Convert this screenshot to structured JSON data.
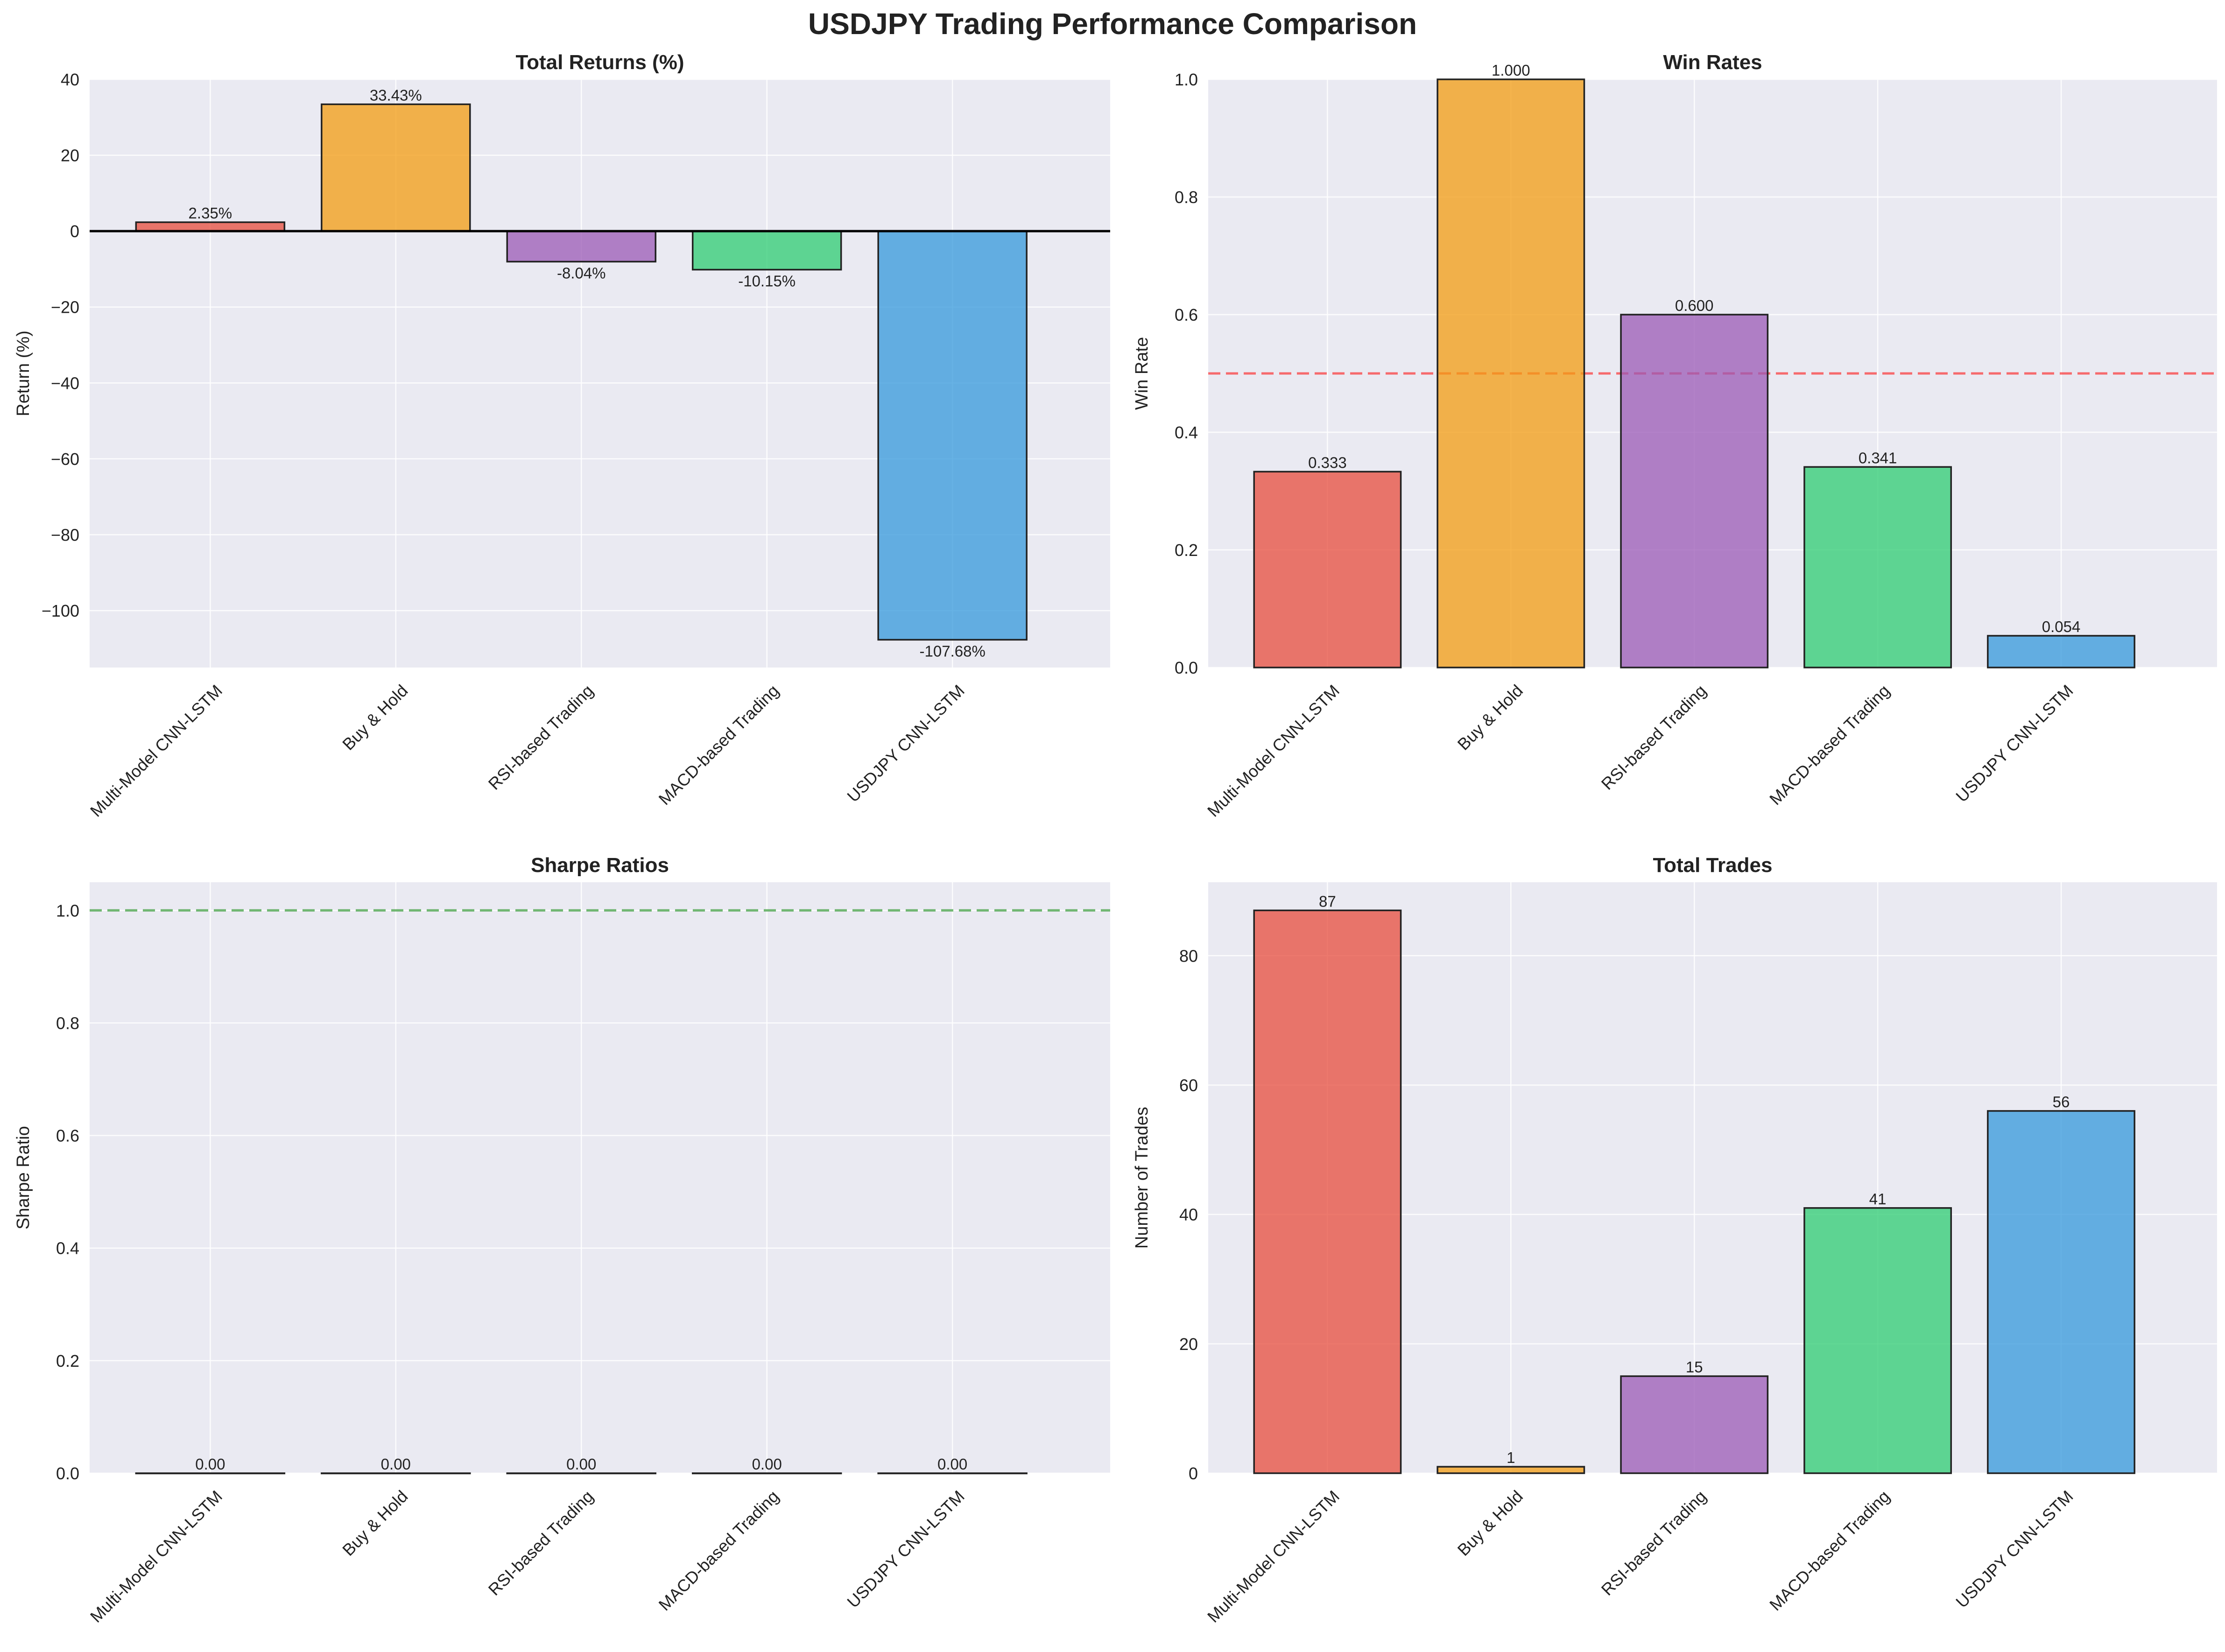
{
  "figure": {
    "title": "USDJPY Trading Performance Comparison",
    "bar_colors": [
      "#e74c3c",
      "#f39c12",
      "#9b59b6",
      "#2ecc71",
      "#3498db"
    ],
    "bar_alpha": 0.75,
    "background": "#eaeaf2"
  },
  "chart_data": [
    {
      "type": "bar",
      "title": "Total Returns (%)",
      "xlabel": "",
      "ylabel": "Return (%)",
      "categories": [
        "Multi-Model CNN-LSTM",
        "Buy & Hold",
        "RSI-based Trading",
        "MACD-based Trading",
        "USDJPY CNN-LSTM"
      ],
      "values": [
        2.35,
        33.43,
        -8.04,
        -10.15,
        -107.68
      ],
      "data_labels": [
        "2.35%",
        "33.43%",
        "-8.04%",
        "-10.15%",
        "-107.68%"
      ],
      "ylim": [
        -115,
        40
      ],
      "yticks": [
        40,
        20,
        0,
        -20,
        -40,
        -60,
        -80,
        -100
      ],
      "ytick_labels": [
        "40",
        "20",
        "0",
        "−20",
        "−40",
        "−60",
        "−80",
        "−100"
      ],
      "reference_line": {
        "y": 0,
        "style": "solid",
        "color": "#000000"
      },
      "grid": true
    },
    {
      "type": "bar",
      "title": "Win Rates",
      "xlabel": "",
      "ylabel": "Win Rate",
      "categories": [
        "Multi-Model CNN-LSTM",
        "Buy & Hold",
        "RSI-based Trading",
        "MACD-based Trading",
        "USDJPY CNN-LSTM"
      ],
      "values": [
        0.333,
        1.0,
        0.6,
        0.341,
        0.054
      ],
      "data_labels": [
        "0.333",
        "1.000",
        "0.600",
        "0.341",
        "0.054"
      ],
      "ylim": [
        0,
        1.0
      ],
      "yticks": [
        0.0,
        0.2,
        0.4,
        0.6,
        0.8,
        1.0
      ],
      "ytick_labels": [
        "0.0",
        "0.2",
        "0.4",
        "0.6",
        "0.8",
        "1.0"
      ],
      "reference_line": {
        "y": 0.5,
        "style": "dashed",
        "color": "#ff0000"
      },
      "grid": true
    },
    {
      "type": "bar",
      "title": "Sharpe Ratios",
      "xlabel": "",
      "ylabel": "Sharpe Ratio",
      "categories": [
        "Multi-Model CNN-LSTM",
        "Buy & Hold",
        "RSI-based Trading",
        "MACD-based Trading",
        "USDJPY CNN-LSTM"
      ],
      "values": [
        0.0,
        0.0,
        0.0,
        0.0,
        0.0
      ],
      "data_labels": [
        "0.00",
        "0.00",
        "0.00",
        "0.00",
        "0.00"
      ],
      "ylim": [
        0,
        1.05
      ],
      "yticks": [
        0.0,
        0.2,
        0.4,
        0.6,
        0.8,
        1.0
      ],
      "ytick_labels": [
        "0.0",
        "0.2",
        "0.4",
        "0.6",
        "0.8",
        "1.0"
      ],
      "reference_line": {
        "y": 1.0,
        "style": "dashed",
        "color": "#008000"
      },
      "grid": true
    },
    {
      "type": "bar",
      "title": "Total Trades",
      "xlabel": "",
      "ylabel": "Number of Trades",
      "categories": [
        "Multi-Model CNN-LSTM",
        "Buy & Hold",
        "RSI-based Trading",
        "MACD-based Trading",
        "USDJPY CNN-LSTM"
      ],
      "values": [
        87,
        1,
        15,
        41,
        56
      ],
      "data_labels": [
        "87",
        "1",
        "15",
        "41",
        "56"
      ],
      "ylim": [
        0,
        91.35
      ],
      "yticks": [
        0,
        20,
        40,
        60,
        80
      ],
      "ytick_labels": [
        "0",
        "20",
        "40",
        "60",
        "80"
      ],
      "reference_line": null,
      "grid": true
    }
  ]
}
